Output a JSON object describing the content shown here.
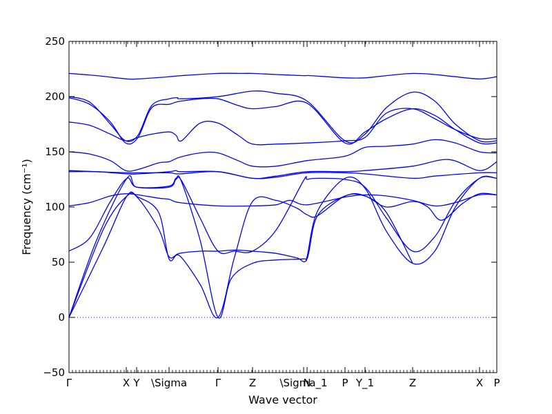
{
  "chart_data": {
    "type": "line",
    "title": "",
    "xlabel": "Wave vector",
    "ylabel": "Frequency (cm⁻¹)",
    "ylim": [
      -50,
      250
    ],
    "yticks": [
      -50,
      0,
      50,
      100,
      150,
      200,
      250
    ],
    "xlim": [
      0,
      6.2
    ],
    "xticks": [
      {
        "x": 0.0,
        "label": "Γ"
      },
      {
        "x": 0.83,
        "label": "X"
      },
      {
        "x": 0.98,
        "label": "Y"
      },
      {
        "x": 1.45,
        "label": "\\Sigma"
      },
      {
        "x": 2.16,
        "label": "Γ"
      },
      {
        "x": 2.66,
        "label": "Z"
      },
      {
        "x": 3.4,
        "label": "\\Sigma_1"
      },
      {
        "x": 3.45,
        "label": "N"
      },
      {
        "x": 4.0,
        "label": "P"
      },
      {
        "x": 4.29,
        "label": "Y_1"
      },
      {
        "x": 4.98,
        "label": "Z"
      },
      {
        "x": 5.95,
        "label": "X"
      },
      {
        "x": 6.2,
        "label": "P"
      }
    ],
    "zero_line": true,
    "line_color": "#0000ff",
    "series": [
      {
        "x": [
          0,
          0.4,
          0.84,
          1.0,
          1.45,
          1.63,
          2.16,
          2.5,
          2.66,
          3.0,
          3.4,
          3.5,
          4.0,
          4.29,
          4.6,
          4.98,
          5.3,
          5.6,
          5.95,
          6.2
        ],
        "y": [
          221,
          219,
          216,
          216,
          218,
          219,
          221,
          221,
          221,
          220,
          219,
          219,
          217,
          217,
          219,
          221,
          220,
          218,
          216,
          218
        ]
      },
      {
        "x": [
          0,
          0.3,
          0.6,
          0.82,
          1.0,
          1.2,
          1.45,
          1.57,
          1.63,
          2.16,
          2.66,
          3.0,
          3.45,
          4.0,
          4.29,
          4.6,
          4.98,
          5.3,
          5.6,
          5.95,
          6.2
        ],
        "y": [
          200,
          195,
          175,
          160,
          165,
          192,
          198,
          199,
          198,
          200,
          205,
          203,
          196,
          160,
          166,
          190,
          204,
          196,
          175,
          160,
          160
        ]
      },
      {
        "x": [
          0,
          0.3,
          0.6,
          0.82,
          1.0,
          1.2,
          1.45,
          1.55,
          1.63,
          1.9,
          2.16,
          2.45,
          2.66,
          3.0,
          3.45,
          4.0,
          4.29,
          4.6,
          4.98,
          5.3,
          5.6,
          5.95,
          6.2
        ],
        "y": [
          199,
          193,
          177,
          158,
          163,
          190,
          193,
          195,
          196,
          198,
          198,
          192,
          189,
          191,
          194,
          158,
          168,
          180,
          189,
          183,
          170,
          158,
          158
        ]
      },
      {
        "x": [
          0,
          0.3,
          0.6,
          0.82,
          1.0,
          1.2,
          1.45,
          1.55,
          1.63,
          1.9,
          2.16,
          2.45,
          2.66,
          3.0,
          3.45,
          4.0,
          4.29,
          4.6,
          4.98,
          5.3,
          5.6,
          5.95,
          6.2
        ],
        "y": [
          177,
          174,
          166,
          160,
          163,
          166,
          168,
          165,
          160,
          176,
          176,
          165,
          157,
          157,
          158,
          160,
          163,
          185,
          189,
          180,
          170,
          162,
          162
        ]
      },
      {
        "x": [
          0,
          0.3,
          0.6,
          0.82,
          1.0,
          1.3,
          1.45,
          1.6,
          1.9,
          2.16,
          2.45,
          2.66,
          3.0,
          3.45,
          4.0,
          4.29,
          4.6,
          4.98,
          5.3,
          5.6,
          5.95,
          6.2
        ],
        "y": [
          150,
          148,
          142,
          133,
          134,
          140,
          141,
          145,
          149,
          149,
          142,
          137,
          137,
          142,
          146,
          154,
          155,
          157,
          161,
          158,
          150,
          149
        ]
      },
      {
        "x": [
          0,
          0.4,
          0.84,
          1.0,
          1.45,
          1.6,
          2.16,
          2.66,
          3.0,
          3.45,
          4.0,
          4.29,
          4.98,
          5.5,
          5.95,
          6.2
        ],
        "y": [
          133,
          132,
          131,
          131,
          131,
          130,
          132,
          126,
          128,
          132,
          132,
          133,
          137,
          143,
          133,
          141
        ]
      },
      {
        "x": [
          0,
          0.4,
          0.84,
          1.0,
          1.45,
          1.55,
          1.63,
          2.16,
          2.66,
          3.0,
          3.45,
          4.0,
          4.29,
          4.98,
          5.3,
          5.95,
          6.2
        ],
        "y": [
          132,
          132,
          130,
          130,
          132,
          133,
          132,
          132,
          126,
          127,
          131,
          131,
          130,
          126,
          128,
          131,
          131
        ]
      },
      {
        "x": [
          0,
          0.3,
          0.6,
          0.82,
          1.0,
          1.3,
          1.45,
          1.6,
          2.16,
          2.66,
          3.0,
          3.2,
          3.45,
          4.0,
          4.29,
          4.6,
          4.98,
          5.3,
          5.6,
          5.95,
          6.2
        ],
        "y": [
          101,
          104,
          110,
          112,
          111,
          108,
          107,
          104,
          101,
          101,
          102,
          106,
          102,
          109,
          111,
          110,
          106,
          101,
          104,
          111,
          111
        ]
      },
      {
        "x": [
          0,
          0.3,
          0.6,
          0.84,
          0.98,
          1.45,
          1.55,
          1.63,
          1.9,
          2.16,
          2.4,
          2.66,
          3.0,
          3.4,
          3.45,
          3.6,
          4.0,
          4.29,
          4.6,
          4.98,
          5.3,
          5.6,
          5.95,
          6.2
        ],
        "y": [
          60,
          72,
          105,
          126,
          118,
          118,
          125,
          124,
          90,
          60,
          60,
          60,
          79,
          124,
          125,
          126,
          125,
          118,
          90,
          60,
          73,
          105,
          126,
          126
        ]
      },
      {
        "x": [
          0,
          0.4,
          0.84,
          0.98,
          1.45,
          1.55,
          1.63,
          1.9,
          2.16,
          2.35,
          2.66,
          3.0,
          3.4,
          3.45,
          3.6,
          4.0,
          4.29,
          4.6,
          4.98,
          5.3,
          5.6,
          5.95,
          6.2
        ],
        "y": [
          0,
          70,
          126,
          118,
          119,
          126,
          123,
          70,
          0,
          35,
          49,
          52,
          53,
          55,
          96,
          126,
          117,
          78,
          49,
          60,
          100,
          126,
          126
        ]
      },
      {
        "x": [
          0,
          0.5,
          0.84,
          1.0,
          1.3,
          1.45,
          1.6,
          1.9,
          2.16,
          2.4,
          2.66,
          3.0,
          3.3,
          3.45,
          3.6,
          4.0,
          4.29,
          4.6,
          4.98,
          5.2,
          5.4,
          5.7,
          5.95,
          6.2
        ],
        "y": [
          0,
          80,
          110,
          108,
          80,
          55,
          58,
          60,
          60,
          61,
          60,
          58,
          54,
          53,
          92,
          110,
          110,
          100,
          105,
          100,
          88,
          103,
          112,
          111
        ]
      },
      {
        "x": [
          0,
          0.5,
          0.84,
          1.0,
          1.3,
          1.45,
          1.6,
          1.9,
          2.16,
          2.4,
          2.66,
          3.0,
          3.3,
          3.45,
          3.6,
          4.0,
          4.29,
          4.6,
          4.98
        ],
        "y": [
          0,
          64,
          110,
          109,
          95,
          53,
          56,
          30,
          0,
          55,
          105,
          106,
          99,
          93,
          92,
          110,
          110,
          95,
          49
        ]
      }
    ]
  }
}
